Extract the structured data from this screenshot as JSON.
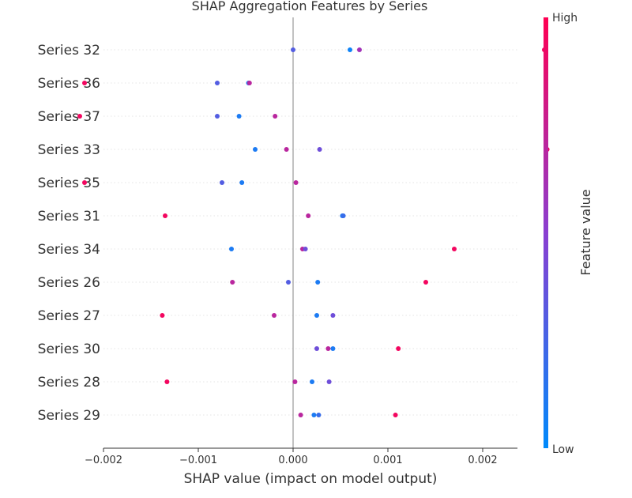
{
  "chart_data": {
    "type": "scatter",
    "title": "SHAP Aggregation Features by Series",
    "xlabel": "SHAP value (impact on model output)",
    "colorbar_label": "Feature value",
    "colorbar_high": "High",
    "colorbar_low": "Low",
    "xlim": [
      -0.0025,
      0.0029
    ],
    "xticks": [
      -0.002,
      -0.001,
      0.0,
      0.001,
      0.002
    ],
    "xtick_labels": [
      "−0.002",
      "−0.001",
      "0.000",
      "0.001",
      "0.002"
    ],
    "colors": {
      "low": "#008afb",
      "high": "#ff0052",
      "zero_line": "#999999",
      "grid": "#cccccc"
    },
    "series": [
      {
        "name": "Series 32",
        "points": [
          [
            0.0,
            0.3
          ],
          [
            0.0006,
            0.05
          ],
          [
            0.0007,
            0.6
          ],
          [
            0.00265,
            0.95
          ]
        ]
      },
      {
        "name": "Series 36",
        "points": [
          [
            -0.0022,
            0.95
          ],
          [
            -0.0008,
            0.3
          ],
          [
            -0.00047,
            0.1
          ],
          [
            -0.00046,
            0.7
          ]
        ]
      },
      {
        "name": "Series 37",
        "points": [
          [
            -0.00225,
            0.95
          ],
          [
            -0.0008,
            0.3
          ],
          [
            -0.00057,
            0.1
          ],
          [
            -0.00019,
            0.7
          ]
        ]
      },
      {
        "name": "Series 33",
        "points": [
          [
            -0.0004,
            0.1
          ],
          [
            -7e-05,
            0.7
          ],
          [
            0.00028,
            0.4
          ],
          [
            0.00268,
            0.95
          ]
        ]
      },
      {
        "name": "Series 35",
        "points": [
          [
            -0.0022,
            0.95
          ],
          [
            -0.00075,
            0.3
          ],
          [
            -0.00054,
            0.1
          ],
          [
            3e-05,
            0.7
          ]
        ]
      },
      {
        "name": "Series 31",
        "points": [
          [
            -0.00135,
            0.95
          ],
          [
            0.00016,
            0.7
          ],
          [
            0.00052,
            0.1
          ],
          [
            0.00053,
            0.2
          ]
        ]
      },
      {
        "name": "Series 34",
        "points": [
          [
            -0.00065,
            0.1
          ],
          [
            0.0001,
            0.7
          ],
          [
            0.00013,
            0.4
          ],
          [
            0.0017,
            0.95
          ]
        ]
      },
      {
        "name": "Series 26",
        "points": [
          [
            -0.00064,
            0.7
          ],
          [
            -5e-05,
            0.3
          ],
          [
            0.00026,
            0.1
          ],
          [
            0.0014,
            0.95
          ]
        ]
      },
      {
        "name": "Series 27",
        "points": [
          [
            -0.00138,
            0.95
          ],
          [
            -0.0002,
            0.7
          ],
          [
            0.00025,
            0.1
          ],
          [
            0.00042,
            0.4
          ]
        ]
      },
      {
        "name": "Series 30",
        "points": [
          [
            0.00025,
            0.4
          ],
          [
            0.00037,
            0.7
          ],
          [
            0.00042,
            0.1
          ],
          [
            0.00111,
            0.95
          ]
        ]
      },
      {
        "name": "Series 28",
        "points": [
          [
            -0.00133,
            0.95
          ],
          [
            2e-05,
            0.7
          ],
          [
            0.0002,
            0.1
          ],
          [
            0.00038,
            0.4
          ]
        ]
      },
      {
        "name": "Series 29",
        "points": [
          [
            8e-05,
            0.7
          ],
          [
            0.00022,
            0.1
          ],
          [
            0.00027,
            0.2
          ],
          [
            0.00108,
            0.95
          ]
        ]
      }
    ]
  }
}
